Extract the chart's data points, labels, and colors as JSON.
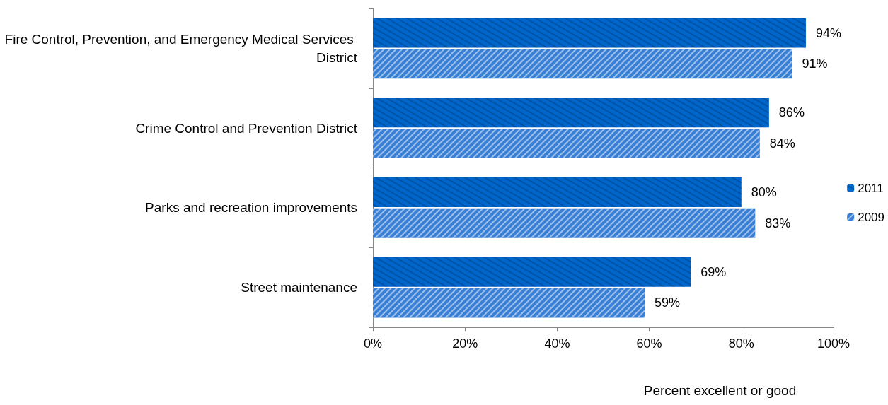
{
  "chart_data": {
    "type": "bar",
    "orientation": "horizontal",
    "xlabel": "Percent excellent or good",
    "categories": [
      "Fire Control, Prevention, and Emergency Medical Services District",
      "Crime Control and Prevention District",
      "Parks and recreation improvements",
      "Street maintenance"
    ],
    "series": [
      {
        "name": "2011",
        "color": "#0066cc",
        "values": [
          94,
          86,
          80,
          69
        ],
        "value_labels": [
          "94%",
          "86%",
          "80%",
          "69%"
        ]
      },
      {
        "name": "2009",
        "color": "#3a7fd6",
        "values": [
          91,
          84,
          83,
          59
        ],
        "value_labels": [
          "91%",
          "84%",
          "83%",
          "59%"
        ]
      }
    ],
    "xlim": [
      0,
      100
    ],
    "xticks": [
      {
        "value": 0,
        "label": "0%"
      },
      {
        "value": 20,
        "label": "20%"
      },
      {
        "value": 40,
        "label": "40%"
      },
      {
        "value": 60,
        "label": "60%"
      },
      {
        "value": 80,
        "label": "80%"
      },
      {
        "value": 100,
        "label": "100%"
      }
    ],
    "grid": false,
    "legend": "right"
  }
}
